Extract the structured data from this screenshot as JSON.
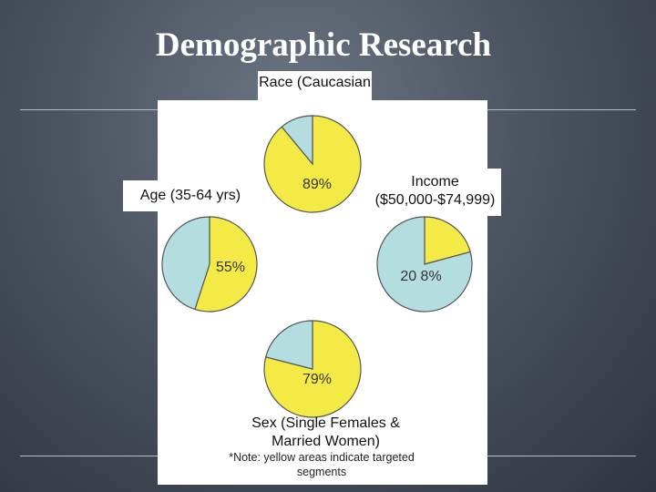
{
  "title": "Demographic Research",
  "chart_data": [
    {
      "type": "pie",
      "title": "Race (Caucasian",
      "values": [
        89,
        11
      ],
      "value_labels": [
        "89%",
        null
      ],
      "colors": [
        "#f4ea45",
        "#b4dde0"
      ]
    },
    {
      "type": "pie",
      "title": "Age (35-64 yrs)",
      "values": [
        55,
        45
      ],
      "value_labels": [
        "55%",
        null
      ],
      "colors": [
        "#f4ea45",
        "#b4dde0"
      ]
    },
    {
      "type": "pie",
      "title": "Income ($50,000-$74,999)",
      "values": [
        20.8,
        79.2
      ],
      "value_labels": [
        "20 8%",
        null
      ],
      "colors": [
        "#f4ea45",
        "#b4dde0"
      ]
    },
    {
      "type": "pie",
      "title": "Sex (Single Females & Married Women)",
      "values": [
        79,
        21
      ],
      "value_labels": [
        "79%",
        null
      ],
      "colors": [
        "#f4ea45",
        "#b4dde0"
      ]
    }
  ],
  "note": "*Note: yellow areas indicate targeted segments"
}
